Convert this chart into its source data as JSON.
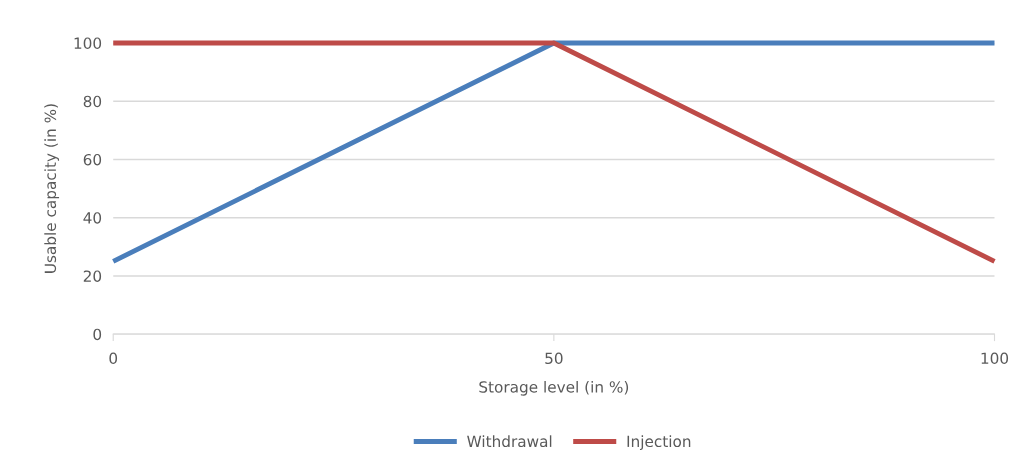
{
  "chart_data": {
    "type": "line",
    "xlabel": "Storage level (in %)",
    "ylabel": "Usable capacity (in %)",
    "x": [
      0,
      50,
      100
    ],
    "series": [
      {
        "name": "Withdrawal",
        "color": "#4a7ebb",
        "values": [
          25,
          100,
          100
        ]
      },
      {
        "name": "Injection",
        "color": "#be4b48",
        "values": [
          100,
          100,
          25
        ]
      }
    ],
    "xlim": [
      0,
      100
    ],
    "xticks": [
      0,
      50,
      100
    ],
    "ylim": [
      0,
      100
    ],
    "yticks": [
      0,
      20,
      40,
      60,
      80,
      100
    ],
    "grid": "y",
    "legend": "bottom",
    "marker": "none",
    "line_style": "solid"
  }
}
